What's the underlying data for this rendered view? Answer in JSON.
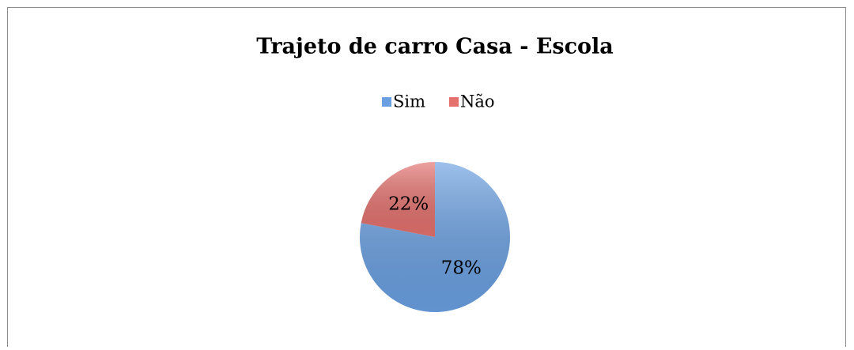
{
  "chart_data": {
    "type": "pie",
    "title": "Trajeto de carro Casa - Escola",
    "categories": [
      "Sim",
      "Não"
    ],
    "values": [
      78,
      22
    ],
    "value_labels": [
      "78%",
      "22%"
    ],
    "colors": [
      "#6aa0e2",
      "#e4716e"
    ],
    "legend": "top"
  }
}
